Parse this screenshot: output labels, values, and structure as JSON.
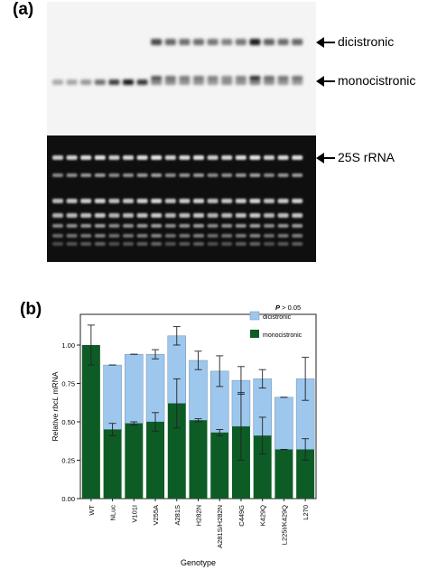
{
  "panel_a": {
    "label": "(a)",
    "bands": {
      "dicistronic": "dicistronic",
      "monocistronic": "monocistronic",
      "rrna": "25S rRNA"
    },
    "lanes": 18,
    "monocistronic_intensity": [
      0.3,
      0.32,
      0.38,
      0.55,
      0.78,
      0.95,
      0.8,
      0.45,
      0.42,
      0.4,
      0.4,
      0.38,
      0.42,
      0.4,
      0.48,
      0.42,
      0.4,
      0.38
    ],
    "dicistronic_intensity": [
      0,
      0,
      0,
      0,
      0,
      0,
      0,
      0.75,
      0.62,
      0.58,
      0.58,
      0.55,
      0.5,
      0.55,
      0.95,
      0.65,
      0.6,
      0.62
    ]
  },
  "panel_b": {
    "label": "(b)",
    "legend": {
      "title": "P > 0.05",
      "dicistronic": "dicistronic",
      "monocistronic": "monocistronic"
    },
    "colors": {
      "dicistronic": "#9ec7ee",
      "monocistronic": "#0d5c26"
    }
  },
  "chart_data": {
    "type": "bar",
    "stacked": true,
    "xlabel": "Genotype",
    "ylabel_prefix": "Relative ",
    "ylabel_italic": "rbcL",
    "ylabel_suffix": " mRNA",
    "ylim": [
      0,
      1.2
    ],
    "yticks": [
      "0.00",
      "0.25",
      "0.50",
      "0.75",
      "1.00"
    ],
    "categories": [
      "WT",
      "NLuc",
      "V101I",
      "V255A",
      "A281S",
      "H282N",
      "A281S/H282N",
      "C449G",
      "K429Q",
      "L225I/K429Q",
      "L270"
    ],
    "series": [
      {
        "name": "monocistronic",
        "values": [
          1.0,
          0.45,
          0.49,
          0.5,
          0.62,
          0.51,
          0.43,
          0.47,
          0.41,
          0.32,
          0.32
        ],
        "err": [
          0.13,
          0.04,
          0.01,
          0.06,
          0.16,
          0.01,
          0.02,
          0.22,
          0.12,
          0,
          0.07
        ]
      },
      {
        "name": "dicistronic",
        "values": [
          0,
          0.42,
          0.45,
          0.44,
          0.44,
          0.39,
          0.4,
          0.3,
          0.37,
          0.34,
          0.46
        ],
        "err": [
          0,
          0,
          0,
          0.03,
          0.06,
          0.06,
          0.1,
          0.09,
          0.06,
          0,
          0.14
        ]
      }
    ],
    "grid": false,
    "legend": "top-right"
  }
}
